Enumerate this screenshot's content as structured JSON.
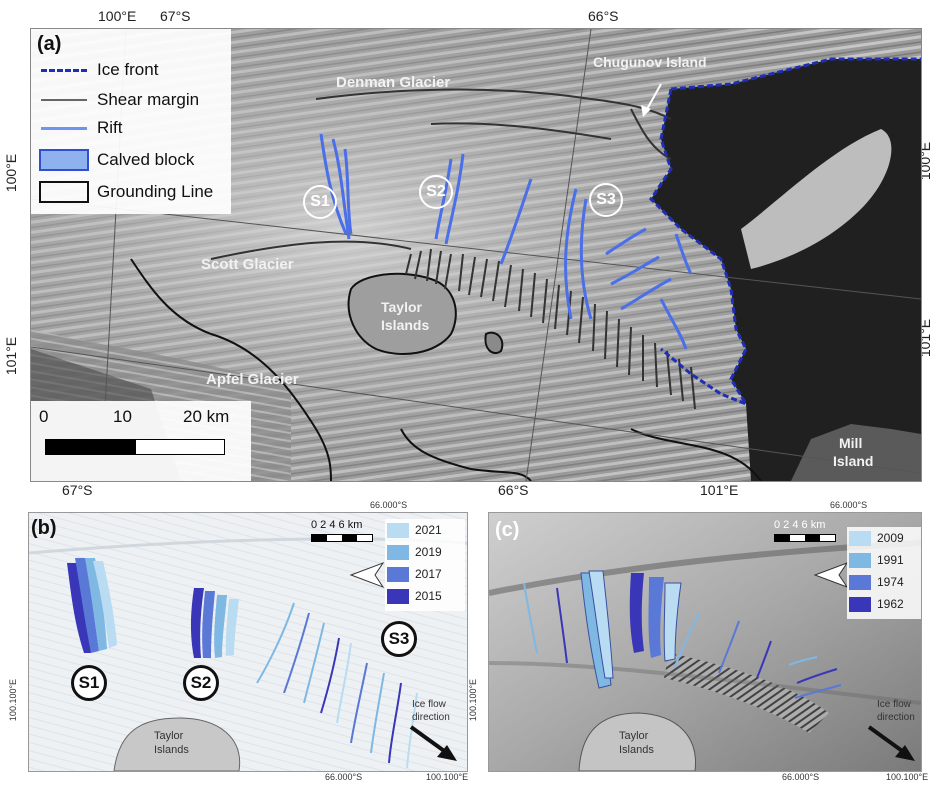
{
  "panel_a": {
    "letter": "(a)",
    "legend": {
      "ice_front": "Ice front",
      "shear_margin": "Shear margin",
      "rift": "Rift",
      "calved_block": "Calved block",
      "grounding_line": "Grounding Line"
    },
    "places": {
      "denman": "Denman Glacier",
      "chugunov": "Chugunov Island",
      "scott": "Scott Glacier",
      "taylor_1": "Taylor",
      "taylor_2": "Islands",
      "apfel": "Apfel Glacier",
      "mill_1": "Mill",
      "mill_2": "Island"
    },
    "sites": [
      "S1",
      "S2",
      "S3"
    ],
    "scale": {
      "zero": "0",
      "ten": "10",
      "twenty": "20 km"
    },
    "coords": {
      "top_100e": "100°E",
      "top_67s": "67°S",
      "top_66s": "66°S",
      "left_100e": "100°E",
      "left_101e": "101°E",
      "right_100e": "100°E",
      "right_101e": "101°E",
      "bottom_67s": "67°S",
      "bottom_66s": "66°S",
      "bottom_101e": "101°E"
    },
    "colors": {
      "ice_front": "#1f2fb5",
      "rift": "#4a6fe8",
      "shear": "#333333"
    }
  },
  "panel_b": {
    "letter": "(b)",
    "years": [
      "2021",
      "2019",
      "2017",
      "2015"
    ],
    "year_colors": [
      "#b9dcf2",
      "#7fb8e2",
      "#5a78d6",
      "#3a36b8"
    ],
    "scale": "0  2  4  6 km",
    "sites": [
      "S1",
      "S2",
      "S3"
    ],
    "island_1": "Taylor",
    "island_2": "Islands",
    "flow_1": "Ice flow",
    "flow_2": "direction",
    "coord_top": "66.000°S",
    "coord_bottom_lat": "66.000°S",
    "coord_bottom_lon": "100.100°E",
    "coord_left": "100.100°E"
  },
  "panel_c": {
    "letter": "(c)",
    "years": [
      "2009",
      "1991",
      "1974",
      "1962"
    ],
    "year_colors": [
      "#b9dcf2",
      "#7fb8e2",
      "#5a78d6",
      "#3a36b8"
    ],
    "scale": "0  2  4  6 km",
    "island_1": "Taylor",
    "island_2": "Islands",
    "flow_1": "Ice flow",
    "flow_2": "direction",
    "coord_top": "66.000°S",
    "coord_bottom_lat": "66.000°S",
    "coord_bottom_lon": "100.100°E",
    "coord_left": "100.100°E"
  }
}
